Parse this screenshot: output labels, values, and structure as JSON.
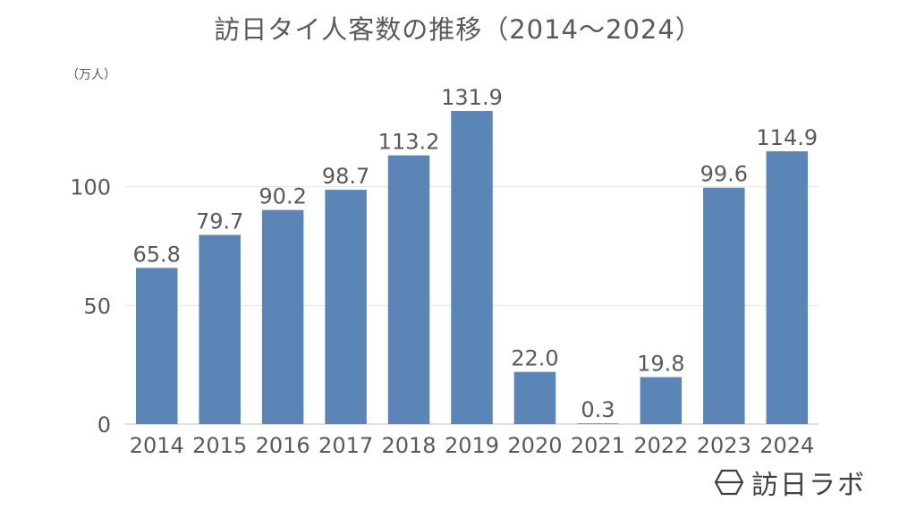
{
  "title": "訪日タイ人客数の推移（2014〜2024）",
  "unit_label": "（万人）",
  "brand": {
    "name": "訪日ラボ",
    "icon": "hexagon-logo-icon"
  },
  "colors": {
    "bar": "#5b84b7",
    "grid": "#e6e6e6",
    "text": "#595959"
  },
  "chart_data": {
    "type": "bar",
    "title": "訪日タイ人客数の推移（2014〜2024）",
    "categories": [
      "2014",
      "2015",
      "2016",
      "2017",
      "2018",
      "2019",
      "2020",
      "2021",
      "2022",
      "2023",
      "2024"
    ],
    "values": [
      65.8,
      79.7,
      90.2,
      98.7,
      113.2,
      131.9,
      22.0,
      0.3,
      19.8,
      99.6,
      114.9
    ],
    "value_labels": [
      "65.8",
      "79.7",
      "90.2",
      "98.7",
      "113.2",
      "131.9",
      "22.0",
      "0.3",
      "19.8",
      "99.6",
      "114.9"
    ],
    "ylabel": "（万人）",
    "xlabel": "",
    "ylim": [
      0,
      150
    ],
    "yticks": [
      0,
      50,
      100
    ],
    "grid": true,
    "legend": "none"
  }
}
